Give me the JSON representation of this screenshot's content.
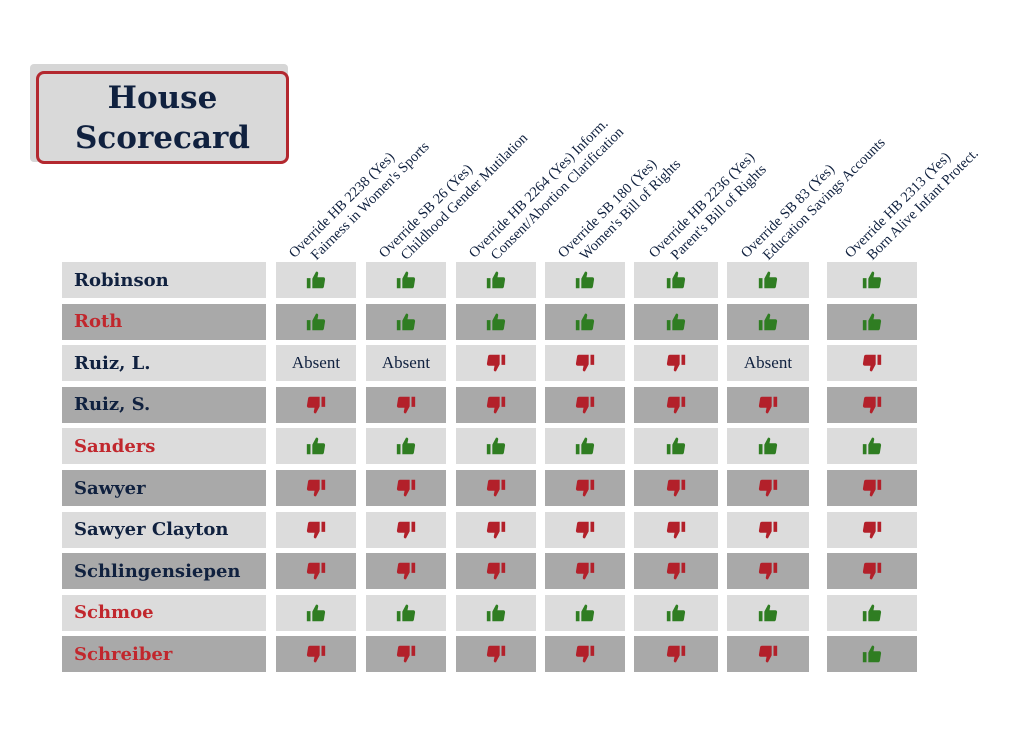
{
  "title": {
    "line1": "House",
    "line2": "Scorecard"
  },
  "colors": {
    "navy": "#10213f",
    "red": "#c1272d",
    "thumb_up": "#2f7d22",
    "thumb_down": "#b3202a",
    "row_light": "#dcdcdc",
    "row_dark": "#a9a9a9"
  },
  "votes": [
    {
      "line1": "Override HB 2238 (Yes)",
      "line2": "Fairness in Women's Sports"
    },
    {
      "line1": "Override SB 26 (Yes)",
      "line2": "Childhood Gender Mutilation"
    },
    {
      "line1": "Override HB 2264 (Yes) Inform.",
      "line2": "Consent/Abortion Clarification"
    },
    {
      "line1": "Override SB 180 (Yes)",
      "line2": "Women's Bill of Rights"
    },
    {
      "line1": "Override HB 2236 (Yes)",
      "line2": "Parent's Bill of Rights"
    },
    {
      "line1": "Override SB 83 (Yes)",
      "line2": "Education Savings Accounts"
    },
    {
      "line1": "Override HB 2313 (Yes)",
      "line2": "Born Alive Infant Protect."
    }
  ],
  "members": [
    {
      "name": "Robinson",
      "party_color": "navy",
      "votes": [
        "up",
        "up",
        "up",
        "up",
        "up",
        "up",
        "up"
      ]
    },
    {
      "name": "Roth",
      "party_color": "red",
      "votes": [
        "up",
        "up",
        "up",
        "up",
        "up",
        "up",
        "up"
      ]
    },
    {
      "name": "Ruiz, L.",
      "party_color": "navy",
      "votes": [
        "absent",
        "absent",
        "down",
        "down",
        "down",
        "absent",
        "down"
      ]
    },
    {
      "name": "Ruiz, S.",
      "party_color": "navy",
      "votes": [
        "down",
        "down",
        "down",
        "down",
        "down",
        "down",
        "down"
      ]
    },
    {
      "name": "Sanders",
      "party_color": "red",
      "votes": [
        "up",
        "up",
        "up",
        "up",
        "up",
        "up",
        "up"
      ]
    },
    {
      "name": "Sawyer",
      "party_color": "navy",
      "votes": [
        "down",
        "down",
        "down",
        "down",
        "down",
        "down",
        "down"
      ]
    },
    {
      "name": "Sawyer Clayton",
      "party_color": "navy",
      "votes": [
        "down",
        "down",
        "down",
        "down",
        "down",
        "down",
        "down"
      ]
    },
    {
      "name": "Schlingensiepen",
      "party_color": "navy",
      "votes": [
        "down",
        "down",
        "down",
        "down",
        "down",
        "down",
        "down"
      ]
    },
    {
      "name": "Schmoe",
      "party_color": "red",
      "votes": [
        "up",
        "up",
        "up",
        "up",
        "up",
        "up",
        "up"
      ]
    },
    {
      "name": "Schreiber",
      "party_color": "red",
      "votes": [
        "down",
        "down",
        "down",
        "down",
        "down",
        "down",
        "up"
      ]
    }
  ],
  "absent_label": "Absent",
  "icons": {
    "up": "thumbs-up-icon",
    "down": "thumbs-down-icon"
  }
}
